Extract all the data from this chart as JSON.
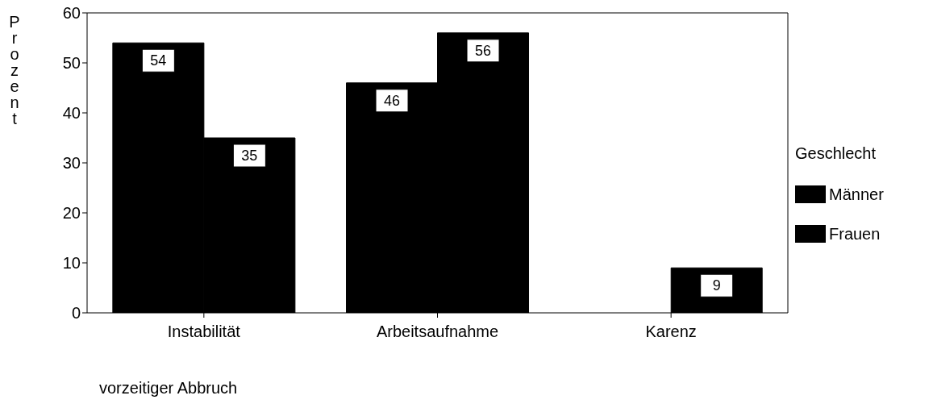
{
  "chart_data": {
    "type": "bar",
    "categories": [
      "Instabilität",
      "Arbeitsaufnahme",
      "Karenz"
    ],
    "series": [
      {
        "name": "Männer",
        "color": "#000000",
        "values": [
          54,
          46,
          null
        ]
      },
      {
        "name": "Frauen",
        "color": "#000000",
        "values": [
          35,
          56,
          9
        ]
      }
    ],
    "xlabel": "vorzeitiger Abbruch",
    "ylabel": "Prozent",
    "legend_title": "Geschlecht",
    "legend": "right",
    "ylim": [
      0,
      60
    ],
    "yticks": [
      0,
      10,
      20,
      30,
      40,
      50,
      60
    ],
    "grid": false,
    "data_labels": true
  }
}
